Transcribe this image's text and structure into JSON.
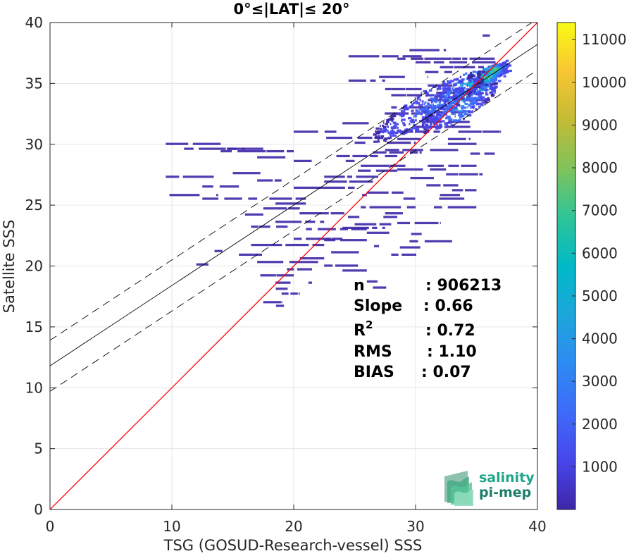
{
  "chart_data": {
    "type": "heatmap",
    "title": "0°≤|LAT|≤ 20°",
    "xlabel": "TSG (GOSUD-Research-vessel) SSS",
    "ylabel": "Satellite SSS",
    "xlim": [
      0,
      40
    ],
    "ylim": [
      0,
      40
    ],
    "x_ticks": [
      "0",
      "10",
      "20",
      "30",
      "40"
    ],
    "y_ticks": [
      "0",
      "5",
      "10",
      "15",
      "20",
      "25",
      "30",
      "35",
      "40"
    ],
    "grid": true,
    "colorbar": {
      "range": [
        0,
        11400
      ],
      "ticks": [
        "1000",
        "2000",
        "3000",
        "4000",
        "5000",
        "6000",
        "7000",
        "8000",
        "9000",
        "10000",
        "11000"
      ],
      "colormap": "parula"
    },
    "lines": {
      "identity": {
        "slope": 1,
        "intercept": 0,
        "color": "#ff0000"
      },
      "fit": {
        "slope": 0.66,
        "intercept": 11.8,
        "color": "#000000"
      },
      "fit_upper": {
        "slope": 0.66,
        "intercept": 13.9,
        "color": "#000000",
        "style": "dashed"
      },
      "fit_lower": {
        "slope": 0.66,
        "intercept": 9.7,
        "color": "#000000",
        "style": "dashed"
      }
    },
    "stats": {
      "n": {
        "label": "n",
        "value": ": 906213"
      },
      "slope": {
        "label": "Slope",
        "value": ": 0.66"
      },
      "r2": {
        "label": "R",
        "sup": "2",
        "value": ": 0.72"
      },
      "rms": {
        "label": "RMS",
        "value": ": 1.10"
      },
      "bias": {
        "label": "BIAS",
        "value": ": 0.07"
      }
    },
    "density_segments": [
      [
        9.5,
        30.0,
        4.5
      ],
      [
        11,
        29.6,
        5
      ],
      [
        14,
        29.4,
        6
      ],
      [
        17,
        28.9,
        3.5
      ],
      [
        9.5,
        27.3,
        4
      ],
      [
        12.5,
        26.5,
        3
      ],
      [
        15,
        27.6,
        3
      ],
      [
        17,
        27.0,
        2
      ],
      [
        9.8,
        25.8,
        4
      ],
      [
        12.5,
        25.5,
        4.5
      ],
      [
        16,
        24.2,
        1.5
      ],
      [
        18,
        25.5,
        3
      ],
      [
        20,
        26.4,
        5
      ],
      [
        18.5,
        23.6,
        4
      ],
      [
        16.5,
        23.2,
        3
      ],
      [
        24,
        23.1,
        3.5
      ],
      [
        22.5,
        27.3,
        4.5
      ],
      [
        20,
        28.6,
        5
      ],
      [
        23.5,
        29.0,
        5
      ],
      [
        24,
        31.7,
        5.5
      ],
      [
        25,
        32.5,
        6
      ],
      [
        27,
        31.0,
        5
      ],
      [
        30,
        31.4,
        4.5
      ],
      [
        28.5,
        30.4,
        6
      ],
      [
        27.5,
        29.5,
        6
      ],
      [
        25.5,
        28.2,
        5
      ],
      [
        23.5,
        27.8,
        5
      ],
      [
        22.5,
        26.9,
        4
      ],
      [
        21,
        25.8,
        5
      ],
      [
        18.5,
        25.1,
        3
      ],
      [
        19.5,
        24.3,
        5
      ],
      [
        17.5,
        24.7,
        3
      ],
      [
        23.5,
        24.0,
        5
      ],
      [
        21,
        23.0,
        5
      ],
      [
        20,
        22.2,
        4
      ],
      [
        22.5,
        22.1,
        3.5
      ],
      [
        16.5,
        21.7,
        6
      ],
      [
        22,
        21.1,
        4
      ],
      [
        20.5,
        20.6,
        2
      ],
      [
        17,
        20.3,
        5
      ],
      [
        22.5,
        20.0,
        4.5
      ],
      [
        16,
        19.2,
        4
      ],
      [
        24,
        19.6,
        2
      ],
      [
        18.5,
        18.6,
        3
      ],
      [
        17.5,
        18.1,
        2
      ],
      [
        19,
        17.7,
        1.5
      ],
      [
        17.5,
        17.0,
        1.5
      ],
      [
        18,
        16.7,
        1.2
      ],
      [
        26,
        18.7,
        2
      ],
      [
        26.5,
        18.2,
        2
      ],
      [
        29,
        34.2,
        5.5
      ],
      [
        27,
        35.5,
        4
      ],
      [
        24.5,
        35.2,
        3
      ],
      [
        29,
        35.9,
        4
      ],
      [
        24.5,
        37.2,
        6
      ],
      [
        28.5,
        37.0,
        8
      ],
      [
        30,
        36.7,
        7
      ],
      [
        32,
        36.3,
        5
      ],
      [
        31,
        34.8,
        4
      ],
      [
        28,
        34.0,
        3.5
      ],
      [
        26,
        33.4,
        2.5
      ],
      [
        28,
        33.0,
        5
      ],
      [
        30.5,
        32.6,
        4
      ],
      [
        31,
        33.6,
        5
      ],
      [
        30.5,
        31.8,
        4
      ],
      [
        29,
        28.8,
        5
      ],
      [
        31,
        28.2,
        4
      ],
      [
        27,
        27.2,
        4.5
      ],
      [
        30,
        26.6,
        3.5
      ],
      [
        26,
        26.0,
        3
      ],
      [
        29,
        25.5,
        5
      ],
      [
        25.5,
        24.8,
        4.5
      ],
      [
        27.5,
        24.3,
        4
      ],
      [
        31.5,
        24.8,
        3.5
      ],
      [
        28.5,
        23.5,
        3.5
      ],
      [
        25,
        23.4,
        3
      ],
      [
        27.5,
        22.6,
        3
      ],
      [
        29.5,
        22.0,
        3.5
      ],
      [
        26.5,
        21.5,
        4
      ],
      [
        28,
        20.9,
        3
      ],
      [
        30,
        30.0,
        5
      ],
      [
        26.5,
        29.3,
        4
      ],
      [
        28.5,
        27.9,
        4
      ],
      [
        22,
        30.5,
        5
      ],
      [
        25,
        30.1,
        5
      ],
      [
        20,
        31.0,
        3.5
      ],
      [
        21,
        33.2,
        3
      ],
      [
        32.5,
        27.5,
        3
      ],
      [
        33,
        26.2,
        2
      ],
      [
        34.5,
        29.2,
        2
      ],
      [
        35.5,
        38.9,
        0.6
      ],
      [
        25,
        37.5,
        2
      ],
      [
        29.5,
        37.7,
        3
      ],
      [
        31,
        38.0,
        2
      ],
      [
        27.5,
        34.5,
        3
      ],
      [
        33.5,
        31.0,
        3.5
      ],
      [
        29.5,
        33.9,
        3
      ],
      [
        32,
        25.8,
        2
      ],
      [
        26,
        22.7,
        2
      ],
      [
        24,
        21.6,
        3
      ],
      [
        19,
        19.7,
        2.5
      ],
      [
        15.5,
        20.9,
        2
      ],
      [
        13.5,
        21.2,
        2
      ],
      [
        12,
        20.1,
        1
      ],
      [
        14.5,
        29.6,
        3
      ]
    ],
    "density_blobs": [
      [
        34.0,
        34.4,
        3.6,
        1.5,
        0.55,
        -0.65
      ],
      [
        35.2,
        35.2,
        2.2,
        1.0,
        0.75,
        -0.65
      ],
      [
        35.9,
        35.7,
        1.3,
        0.65,
        0.85,
        -0.6
      ],
      [
        36.3,
        36.0,
        0.7,
        0.35,
        0.95,
        -0.5
      ],
      [
        31.0,
        33.0,
        4.5,
        1.8,
        0.2,
        -0.5
      ],
      [
        33.5,
        33.0,
        3.0,
        1.4,
        0.3,
        -0.6
      ]
    ]
  }
}
